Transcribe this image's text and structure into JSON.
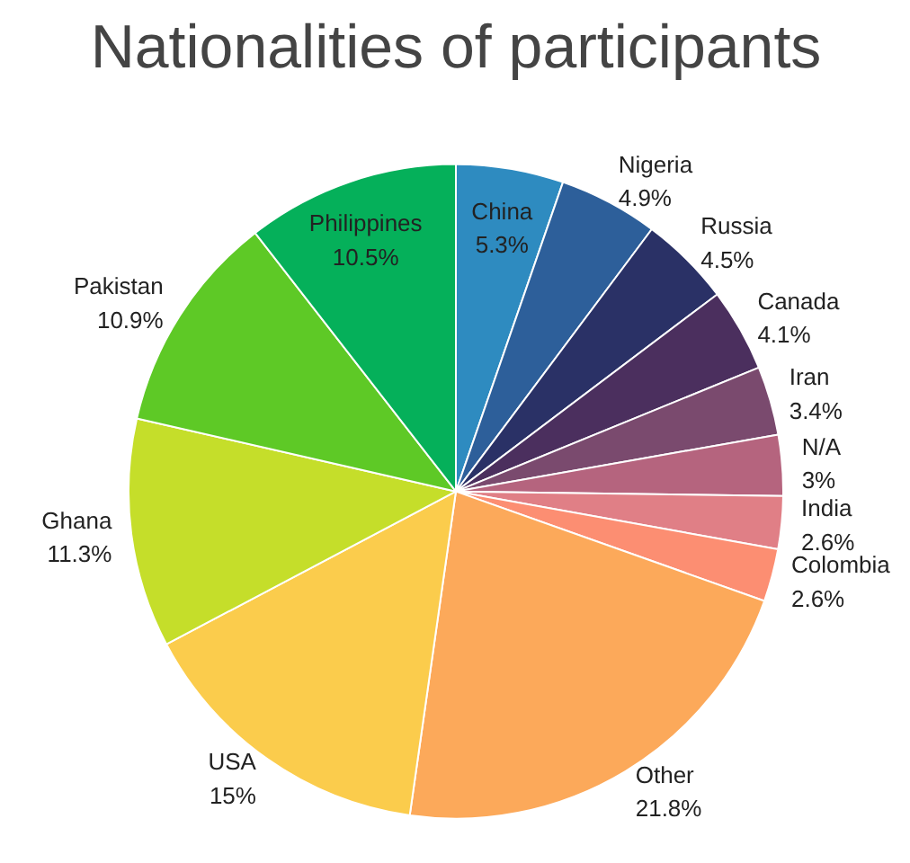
{
  "chart_data": {
    "type": "pie",
    "title": "Nationalities of participants",
    "categories": [
      "China",
      "Nigeria",
      "Russia",
      "Canada",
      "Iran",
      "N/A",
      "India",
      "Colombia",
      "Other",
      "USA",
      "Ghana",
      "Pakistan",
      "Philippines"
    ],
    "values": [
      5.3,
      4.9,
      4.5,
      4.1,
      3.4,
      3,
      2.6,
      2.6,
      21.8,
      15,
      11.3,
      10.9,
      10.5
    ],
    "value_labels": [
      "5.3%",
      "4.9%",
      "4.5%",
      "4.1%",
      "3.4%",
      "3%",
      "2.6%",
      "2.6%",
      "21.8%",
      "15%",
      "11.3%",
      "10.9%",
      "10.5%"
    ],
    "colors": [
      "#2e8bc0",
      "#2d5f9a",
      "#2a3166",
      "#4b2f5e",
      "#7a4a6e",
      "#b5647e",
      "#e07f86",
      "#fc8e72",
      "#fca95a",
      "#fbcc4c",
      "#c5de2a",
      "#5ec926",
      "#05b05a"
    ]
  }
}
